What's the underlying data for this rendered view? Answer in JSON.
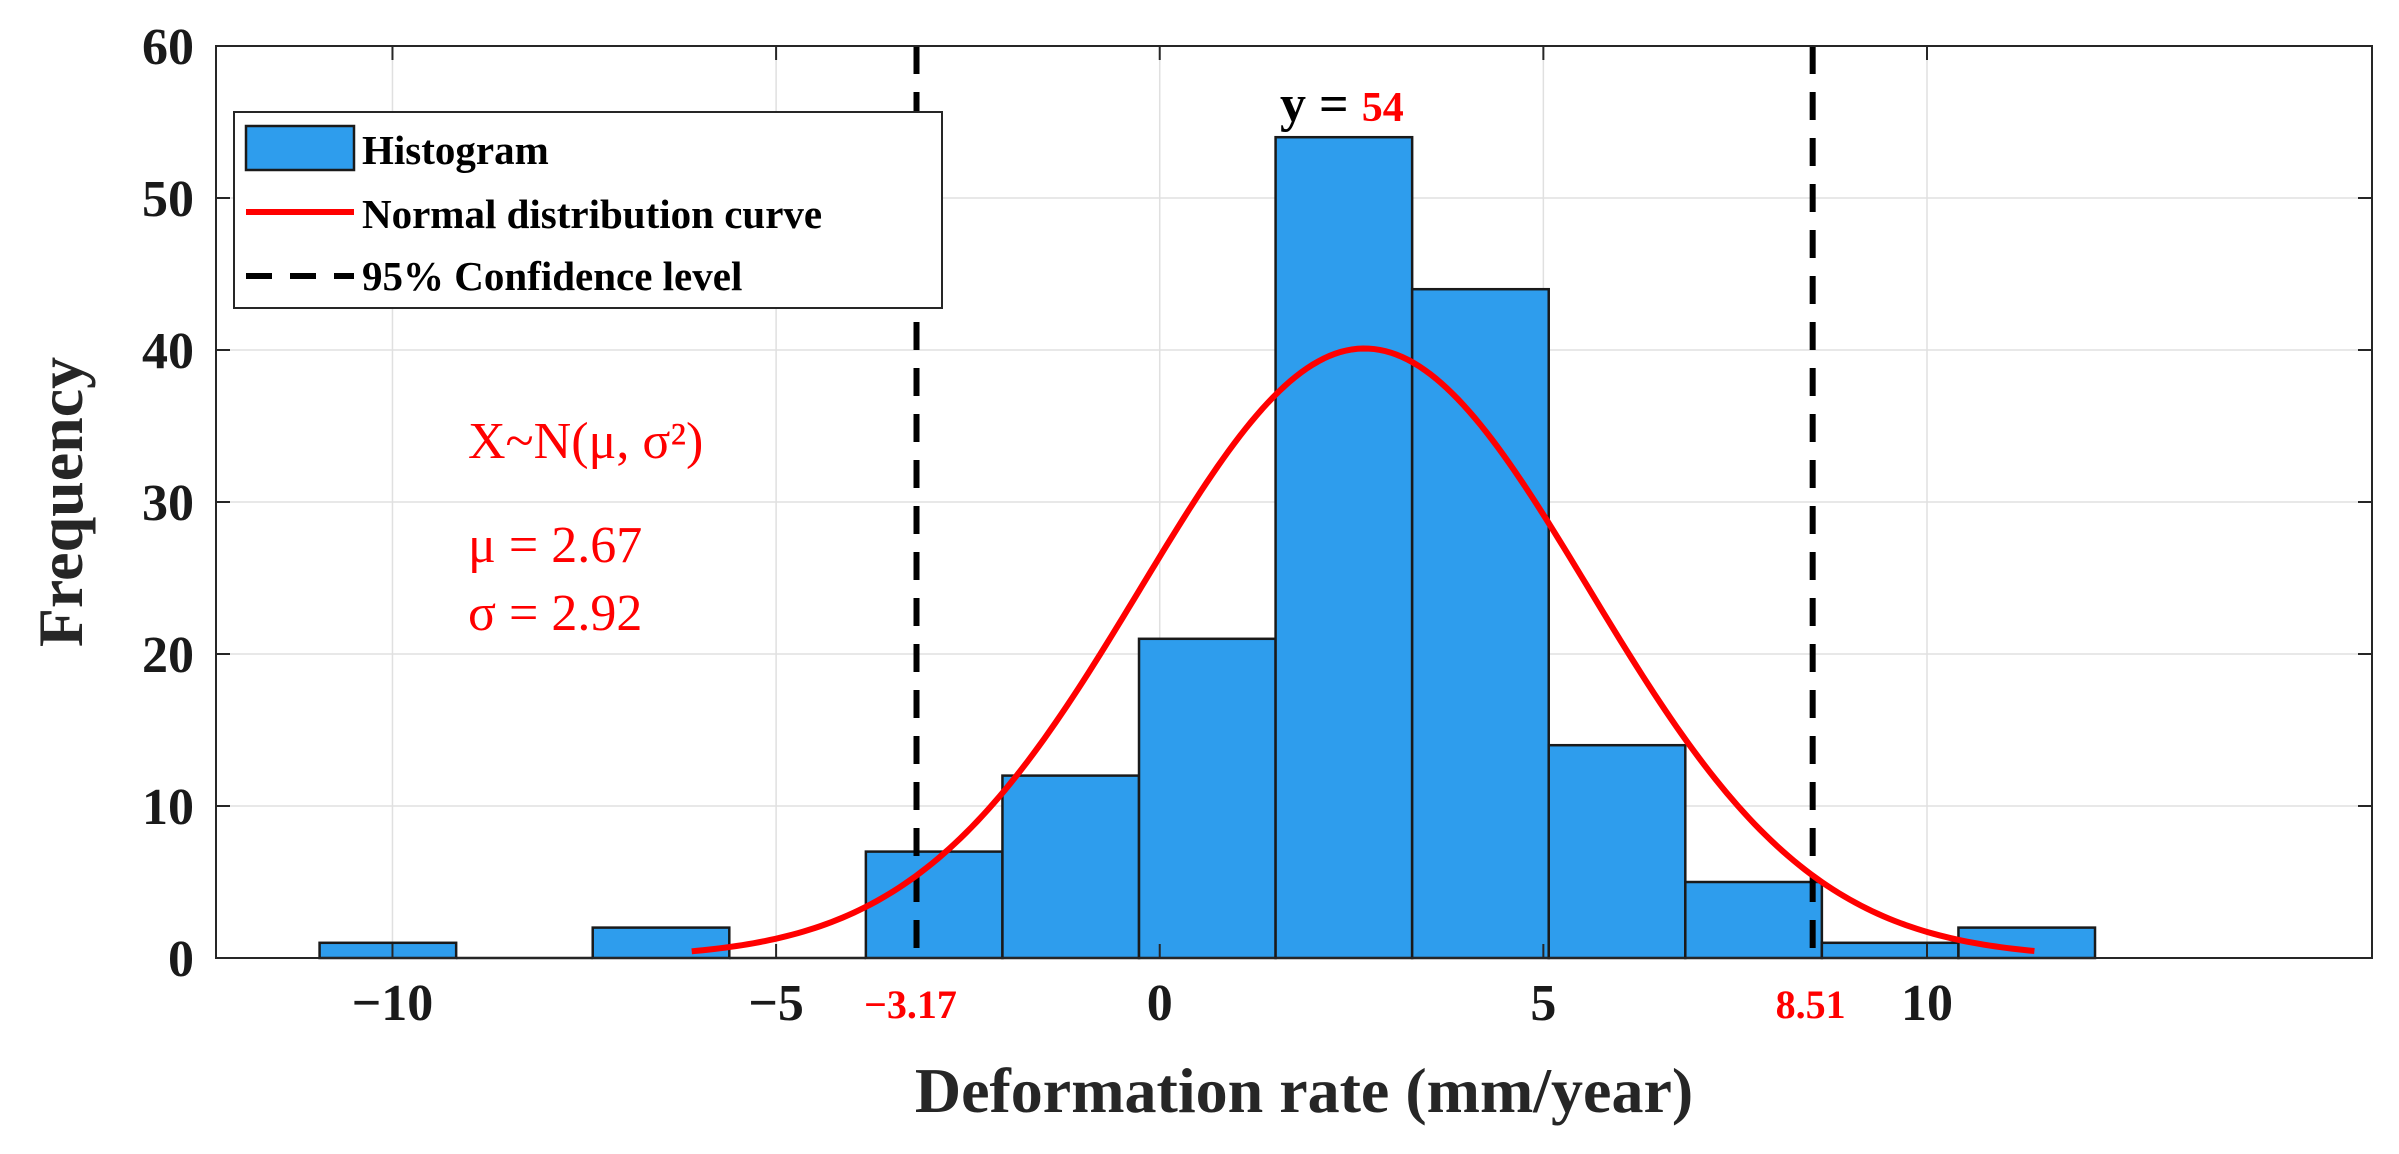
{
  "chart_data": {
    "type": "bar",
    "title": "",
    "xlabel": "Deformation rate (mm/year)",
    "ylabel": "Frequency",
    "xlim": [
      -12.3,
      15.8
    ],
    "ylim": [
      0,
      60
    ],
    "xticks": [
      -10,
      -5,
      0,
      5,
      10
    ],
    "xtick_labels": [
      "−10",
      "−5",
      "0",
      "5",
      "10"
    ],
    "yticks": [
      0,
      10,
      20,
      30,
      40,
      50,
      60
    ],
    "ytick_labels": [
      "0",
      "10",
      "20",
      "30",
      "40",
      "50",
      "60"
    ],
    "grid": true,
    "bins": [
      {
        "start": -10.95,
        "end": -9.17,
        "count": 1
      },
      {
        "start": -9.17,
        "end": -7.39,
        "count": 0
      },
      {
        "start": -7.39,
        "end": -5.61,
        "count": 2
      },
      {
        "start": -5.61,
        "end": -3.83,
        "count": 0
      },
      {
        "start": -3.83,
        "end": -2.05,
        "count": 7
      },
      {
        "start": -2.05,
        "end": -0.27,
        "count": 12
      },
      {
        "start": -0.27,
        "end": 1.51,
        "count": 21
      },
      {
        "start": 1.51,
        "end": 3.29,
        "count": 54
      },
      {
        "start": 3.29,
        "end": 5.07,
        "count": 44
      },
      {
        "start": 5.07,
        "end": 6.85,
        "count": 14
      },
      {
        "start": 6.85,
        "end": 8.63,
        "count": 5
      },
      {
        "start": 8.63,
        "end": 10.41,
        "count": 1
      },
      {
        "start": 10.41,
        "end": 12.19,
        "count": 2
      }
    ],
    "normal_curve": {
      "mu": 2.67,
      "sigma": 2.92,
      "peak": 40.1,
      "x_range": [
        -6.1,
        11.4
      ]
    },
    "confidence_lines": {
      "lower": -3.17,
      "upper": 8.51,
      "lower_label": "−3.17",
      "upper_label": "8.51"
    },
    "max_annotation": {
      "prefix": "y = ",
      "value": "54"
    },
    "stats_text": {
      "distribution": "X~N(μ, σ²)",
      "mu_line": "μ = 2.67",
      "sigma_line": "σ = 2.92"
    },
    "legend": {
      "position": "top-left",
      "entries": [
        {
          "label": "Histogram",
          "kind": "patch"
        },
        {
          "label": "Normal distribution curve",
          "kind": "line"
        },
        {
          "label": "95% Confidence level",
          "kind": "dashed"
        }
      ]
    },
    "colors": {
      "bar_fill": "#2e9ded",
      "bar_edge": "#1a1a1a",
      "curve": "#ff0000",
      "confidence": "#000000",
      "grid": "#e0e0e0",
      "axis": "#262626",
      "annotation": "#ff0000"
    }
  }
}
